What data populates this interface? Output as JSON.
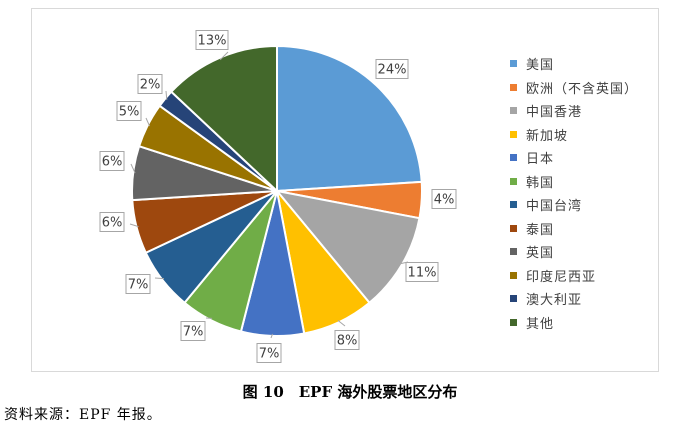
{
  "caption": "图 10　EPF 海外股票地区分布",
  "source": "资料来源：EPF 年报。",
  "chart_data": {
    "type": "pie",
    "title": "",
    "legend_position": "right",
    "categories": [
      "美国",
      "欧洲（不含英国）",
      "中国香港",
      "新加坡",
      "日本",
      "韩国",
      "中国台湾",
      "泰国",
      "英国",
      "印度尼西亚",
      "澳大利亚",
      "其他"
    ],
    "values": [
      24,
      4,
      11,
      8,
      7,
      7,
      7,
      6,
      6,
      5,
      2,
      13
    ],
    "labels": [
      "24%",
      "4%",
      "11%",
      "8%",
      "7%",
      "7%",
      "7%",
      "6%",
      "6%",
      "5%",
      "2%",
      "13%"
    ],
    "colors": [
      "#5b9bd5",
      "#ed7d31",
      "#a5a5a5",
      "#ffc000",
      "#4472c4",
      "#70ad47",
      "#255e91",
      "#9e480e",
      "#636363",
      "#997300",
      "#264478",
      "#43682b"
    ]
  }
}
